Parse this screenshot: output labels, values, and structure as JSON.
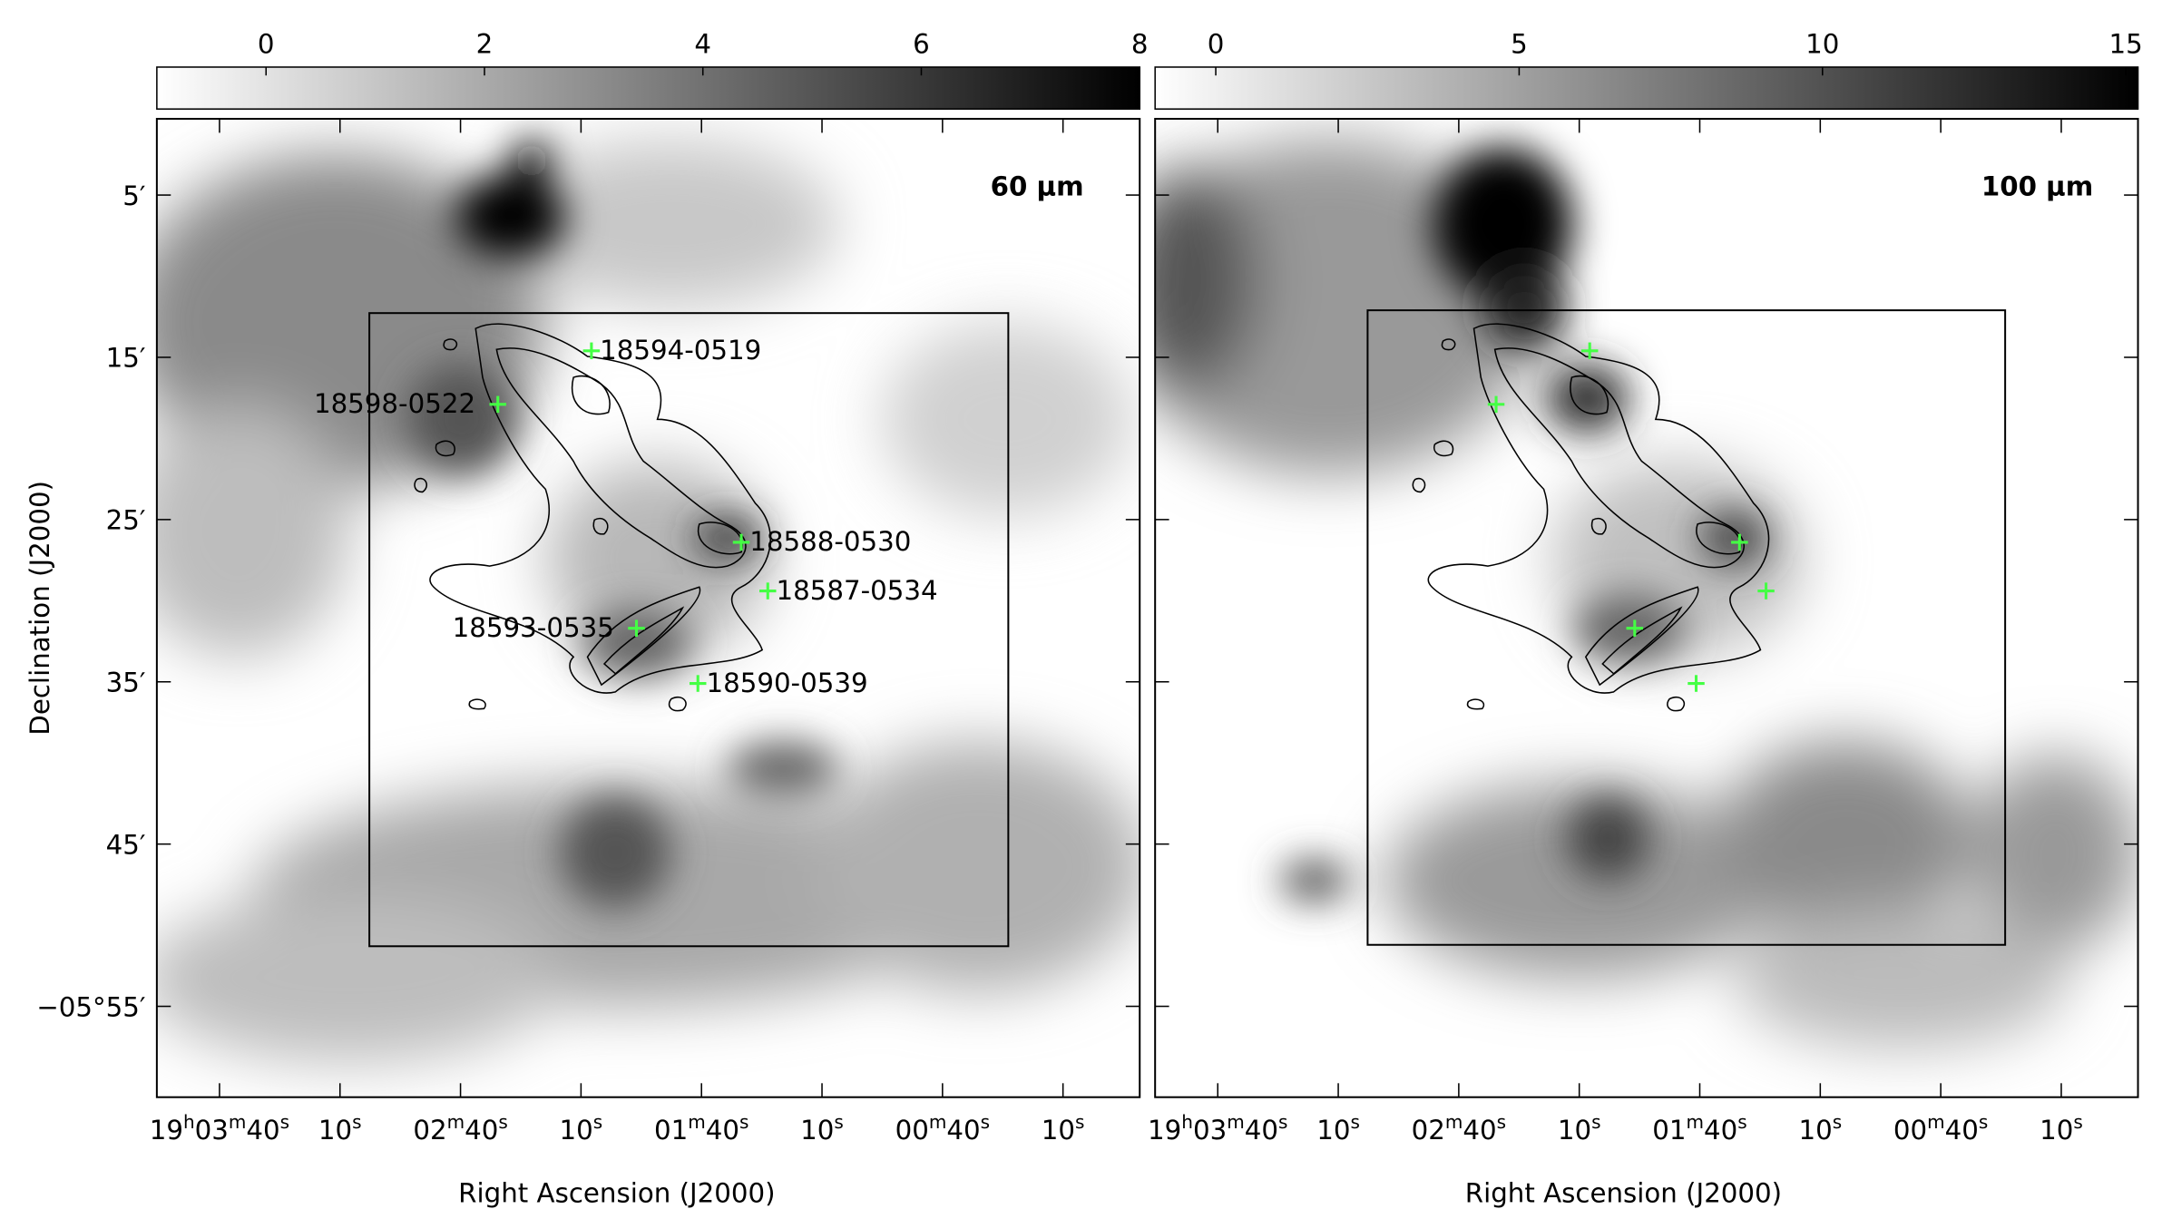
{
  "colorbars": [
    {
      "lim": [
        -1,
        8
      ],
      "ticks": [
        0,
        2,
        4,
        6,
        8
      ]
    },
    {
      "lim": [
        -1,
        15.2
      ],
      "ticks": [
        0,
        5,
        10,
        15
      ]
    }
  ],
  "axes": {
    "xlabel": "Right Ascension (J2000)",
    "ylabel": "Declination (J2000)",
    "xlim": [
      68635.6,
      68390.9
    ],
    "ylim": [
      0.3,
      60.6
    ],
    "xticks": [
      {
        "value": 68620,
        "label": "19h03m40s"
      },
      {
        "value": 68590,
        "label": "10s"
      },
      {
        "value": 68560,
        "label": "02m40s"
      },
      {
        "value": 68530,
        "label": "10s"
      },
      {
        "value": 68500,
        "label": "01m40s"
      },
      {
        "value": 68470,
        "label": "10s"
      },
      {
        "value": 68440,
        "label": "00m40s"
      },
      {
        "value": 68410,
        "label": "10s"
      }
    ],
    "yticks": [
      {
        "value": 5,
        "label": "5′"
      },
      {
        "value": 15,
        "label": "15′"
      },
      {
        "value": 25,
        "label": "25′"
      },
      {
        "value": 35,
        "label": "35′"
      },
      {
        "value": 45,
        "label": "45′"
      },
      {
        "value": 55,
        "label": "−05°55′"
      }
    ]
  },
  "panels": [
    {
      "band": "60 μm",
      "sources": [
        {
          "label": "18594-0519",
          "ra": 68527.4,
          "dec": 14.6
        },
        {
          "label": "18598-0522",
          "ra": 68550.7,
          "dec": 17.9
        },
        {
          "label": "18588-0530",
          "ra": 68490.1,
          "dec": 26.4
        },
        {
          "label": "18587-0534",
          "ra": 68483.5,
          "dec": 29.4
        },
        {
          "label": "18593-0535",
          "ra": 68516.2,
          "dec": 31.7
        },
        {
          "label": "18590-0539",
          "ra": 68500.9,
          "dec": 35.1
        }
      ]
    },
    {
      "band": "100 μm",
      "sources": [
        {
          "ra": 68527.4,
          "dec": 14.6
        },
        {
          "ra": 68550.7,
          "dec": 17.9
        },
        {
          "ra": 68490.1,
          "dec": 26.4
        },
        {
          "ra": 68483.5,
          "dec": 29.4
        },
        {
          "ra": 68516.2,
          "dec": 31.7
        },
        {
          "ra": 68500.9,
          "dec": 35.1
        }
      ]
    }
  ]
}
